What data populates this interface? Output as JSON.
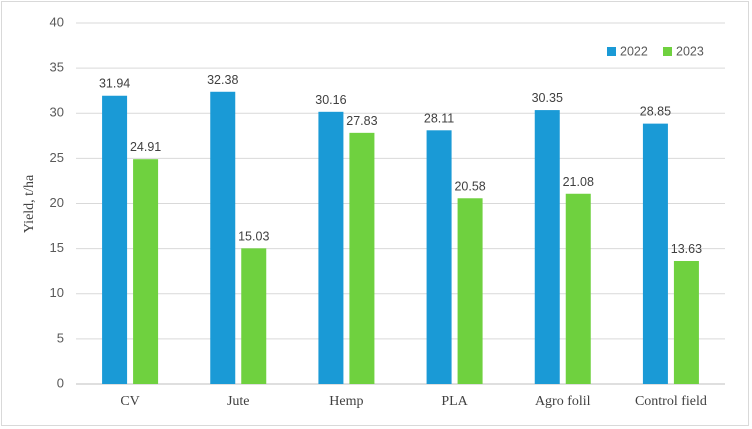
{
  "chart_data": {
    "type": "bar",
    "title": "",
    "xlabel": "",
    "ylabel": "Yield, t/ha",
    "ylim": [
      0,
      40
    ],
    "yticks": [
      0,
      5,
      10,
      15,
      20,
      25,
      30,
      35,
      40
    ],
    "categories": [
      "CV",
      "Jute",
      "Hemp",
      "PLA",
      "Agro folil",
      "Control field"
    ],
    "series": [
      {
        "name": "2022",
        "color": "#1a9ad6",
        "values": [
          31.94,
          32.38,
          30.16,
          28.11,
          30.35,
          28.85
        ]
      },
      {
        "name": "2023",
        "color": "#6fd13f",
        "values": [
          24.91,
          15.03,
          27.83,
          20.58,
          21.08,
          13.63
        ]
      }
    ],
    "legend": "top-right",
    "grid": true
  }
}
